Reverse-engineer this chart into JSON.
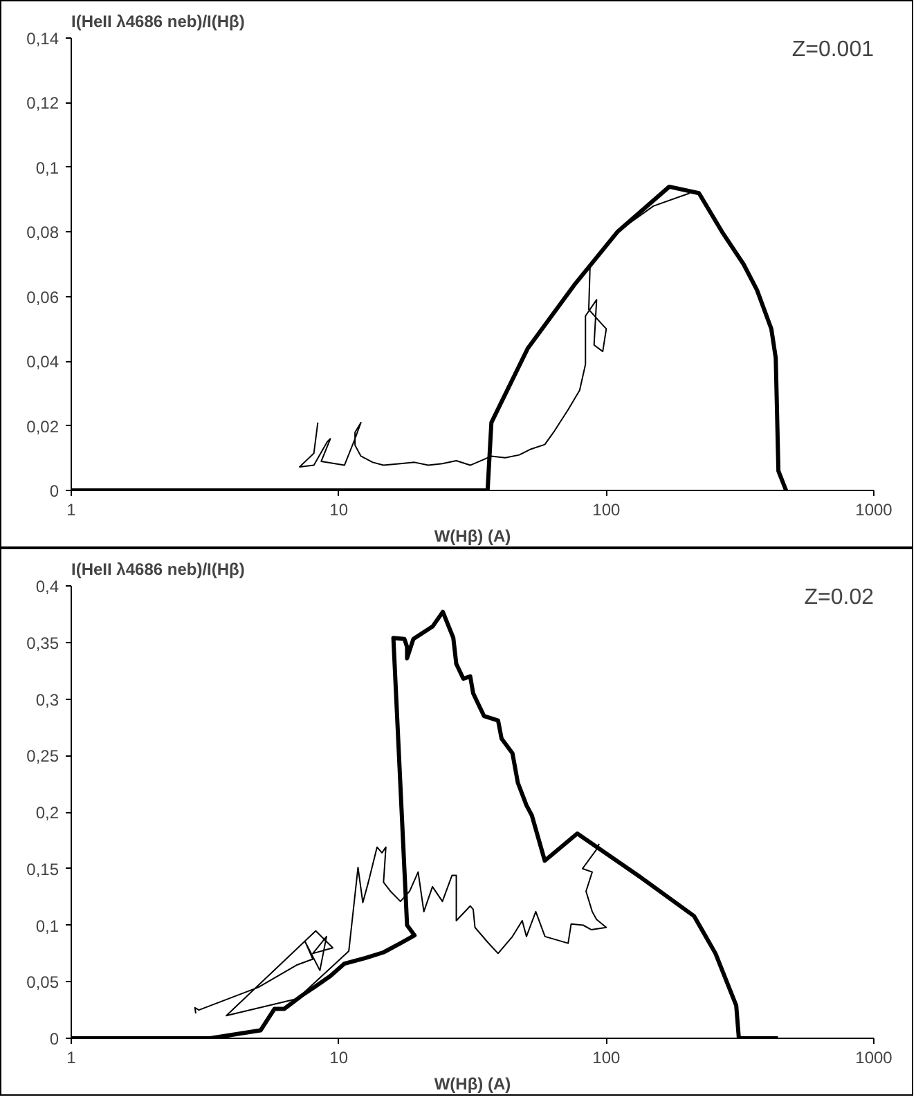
{
  "chart_data": [
    {
      "type": "line",
      "ylabel": "I(HeII λ4686  neb)/I(Hβ)",
      "xlabel": "W(Hβ) (A)",
      "annotations": [
        "Z=0.001"
      ],
      "log": "x",
      "xlim": [
        1,
        1000
      ],
      "xticks": [
        1,
        10,
        100,
        1000
      ],
      "ylim": [
        0,
        0.14
      ],
      "yticks": [
        0,
        {
          "value": 0.02,
          "label": "0,02"
        },
        {
          "value": 0.04,
          "label": "0,04"
        },
        {
          "value": 0.06,
          "label": "0,06"
        },
        {
          "value": 0.08,
          "label": "0,08"
        },
        {
          "value": 0.1,
          "label": "0,1"
        },
        {
          "value": 0.12,
          "label": "0,12"
        },
        {
          "value": 0.14,
          "label": "0,14"
        }
      ],
      "grid": false,
      "line_style": "solid",
      "series": [
        {
          "color": "#000000",
          "x": [
            1,
            5,
            15,
            30,
            36,
            37.2,
            50.9,
            76.6,
            110,
            172,
            222,
            271,
            326,
            366,
            414,
            430,
            440,
            470
          ],
          "values": [
            0,
            0,
            0,
            0,
            0,
            0.021,
            0.044,
            0.064,
            0.08,
            0.094,
            0.092,
            0.08,
            0.07,
            0.062,
            0.05,
            0.041,
            0.006,
            0
          ]
        },
        {
          "color": "#000000",
          "x": [
            8.35,
            8.07,
            7.14,
            8.07,
            9.06,
            9.3,
            8.6,
            10.5,
            11.5,
            12.1,
            11.5,
            11.5,
            12.1,
            13.4,
            14.7,
            17,
            19.2,
            21.6,
            24.4,
            27.5,
            31,
            34.9,
            37.2,
            41.9,
            47.3,
            52.3,
            58.9,
            64,
            72,
            79.5,
            83.6,
            83.6,
            92,
            90,
            97,
            100,
            95,
            86,
            87,
            110,
            150,
            205
          ],
          "values": [
            0.021,
            0.0115,
            0.0073,
            0.0078,
            0.0151,
            0.016,
            0.009,
            0.0078,
            0.016,
            0.021,
            0.018,
            0.014,
            0.0106,
            0.0087,
            0.0078,
            0.0083,
            0.0087,
            0.0078,
            0.0083,
            0.0092,
            0.0078,
            0.0096,
            0.0106,
            0.0101,
            0.011,
            0.0128,
            0.0142,
            0.0184,
            0.025,
            0.031,
            0.039,
            0.054,
            0.059,
            0.045,
            0.043,
            0.05,
            0.052,
            0.056,
            0.07,
            0.08,
            0.088,
            0.092
          ]
        }
      ]
    },
    {
      "type": "line",
      "ylabel": "I(HeII λ4686  neb)/I(Hβ)",
      "xlabel": "W(Hβ) (A)",
      "annotations": [
        "Z=0.02"
      ],
      "log": "x",
      "xlim": [
        1,
        1000
      ],
      "xticks": [
        1,
        10,
        100,
        1000
      ],
      "ylim": [
        0,
        0.4
      ],
      "yticks": [
        0,
        {
          "value": 0.05,
          "label": "0,05"
        },
        {
          "value": 0.1,
          "label": "0,1"
        },
        {
          "value": 0.15,
          "label": "0,15"
        },
        {
          "value": 0.2,
          "label": "0,2"
        },
        {
          "value": 0.25,
          "label": "0,25"
        },
        {
          "value": 0.3,
          "label": "0,3"
        },
        {
          "value": 0.35,
          "label": "0,35"
        },
        {
          "value": 0.4,
          "label": "0,4"
        }
      ],
      "grid": false,
      "line_style": "solid",
      "series": [
        {
          "color": "#000000",
          "x": [
            1,
            2,
            3.3,
            5.1,
            5.75,
            6.25,
            7.3,
            8.2,
            9.3,
            10.5,
            12.6,
            14.7,
            17,
            19.2,
            18,
            16,
            17.6,
            18,
            18,
            19,
            22.4,
            24.5,
            26.8,
            27.5,
            29.2,
            31,
            31.8,
            34.9,
            39.4,
            40.6,
            44.6,
            46.7,
            50.3,
            52.7,
            58.9,
            77.9,
            135,
            213,
            256,
            306,
            313,
            438
          ],
          "values": [
            0,
            0,
            0,
            0.007,
            0.026,
            0.026,
            0.038,
            0.046,
            0.055,
            0.066,
            0.071,
            0.076,
            0.084,
            0.091,
            0.1,
            0.354,
            0.353,
            0.346,
            0.336,
            0.353,
            0.364,
            0.377,
            0.354,
            0.331,
            0.318,
            0.32,
            0.305,
            0.285,
            0.281,
            0.265,
            0.252,
            0.226,
            0.206,
            0.197,
            0.157,
            0.181,
            0.142,
            0.108,
            0.075,
            0.029,
            0,
            0
          ]
        },
        {
          "color": "#000000",
          "x": [
            2.92,
            2.9,
            3.0,
            5.0,
            7.0,
            8.0,
            7.5,
            8.5,
            9.0,
            8.0,
            9.5,
            8.2,
            3.8,
            7.0,
            10.9,
            11.8,
            12.3,
            12.9,
            13.9,
            14.5,
            15,
            14.7,
            15.6,
            17,
            18.4,
            19.8,
            20.8,
            22.4,
            24.4,
            26.5,
            27.5,
            27.5,
            31,
            31.8,
            32.3,
            36,
            39.4,
            44.6,
            48.5,
            50.3,
            54.5,
            59,
            72,
            73.9,
            82,
            88,
            100,
            92,
            88.6,
            84,
            88.6,
            81.5,
            92,
            94
          ],
          "values": [
            0.022,
            0.027,
            0.025,
            0.045,
            0.065,
            0.07,
            0.085,
            0.06,
            0.09,
            0.075,
            0.08,
            0.095,
            0.02,
            0.035,
            0.077,
            0.151,
            0.12,
            0.138,
            0.169,
            0.164,
            0.169,
            0.138,
            0.13,
            0.121,
            0.13,
            0.147,
            0.112,
            0.134,
            0.121,
            0.144,
            0.144,
            0.104,
            0.117,
            0.114,
            0.098,
            0.085,
            0.075,
            0.09,
            0.104,
            0.09,
            0.112,
            0.09,
            0.084,
            0.101,
            0.1,
            0.096,
            0.098,
            0.105,
            0.112,
            0.13,
            0.147,
            0.15,
            0.167,
            0.172
          ]
        }
      ]
    }
  ]
}
